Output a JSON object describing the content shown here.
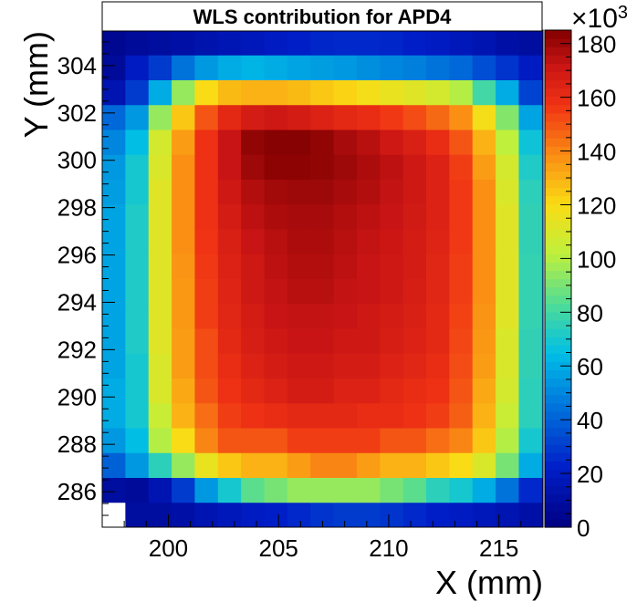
{
  "chart_data": {
    "type": "heatmap",
    "title": "WLS contribution for APD4",
    "xlabel": "X (mm)",
    "ylabel": "Y (mm)",
    "x_range": [
      197,
      217
    ],
    "y_range": [
      284.5,
      305.5
    ],
    "x_ticks": [
      200,
      205,
      210,
      215
    ],
    "y_ticks": [
      286,
      288,
      290,
      292,
      294,
      296,
      298,
      300,
      302,
      304
    ],
    "z_range": [
      0,
      185000
    ],
    "z_ticks": [
      0,
      20,
      40,
      60,
      80,
      100,
      120,
      140,
      160,
      180
    ],
    "z_multiplier_label": "×10",
    "z_multiplier_exponent": "3",
    "colormap": "rainbow (dark blue → cyan → yellow → red → dark red)",
    "grid": false,
    "bins": {
      "nx": 20,
      "ny": 20,
      "x_edges": [
        197,
        218
      ],
      "y_edges": [
        284.5,
        305.5
      ],
      "values": [
        [
          null,
          10,
          10,
          12,
          15,
          18,
          20,
          22,
          25,
          28,
          30,
          30,
          28,
          25,
          22,
          20,
          18,
          15,
          12,
          10
        ],
        [
          10,
          8,
          15,
          30,
          55,
          70,
          85,
          90,
          95,
          95,
          95,
          95,
          90,
          85,
          75,
          70,
          60,
          45,
          25,
          15
        ],
        [
          40,
          55,
          75,
          95,
          115,
          125,
          130,
          130,
          135,
          140,
          140,
          135,
          130,
          130,
          125,
          120,
          110,
          90,
          60,
          40
        ],
        [
          55,
          65,
          100,
          120,
          140,
          150,
          150,
          150,
          155,
          155,
          155,
          155,
          150,
          150,
          145,
          140,
          125,
          100,
          70,
          50
        ],
        [
          60,
          70,
          105,
          130,
          145,
          155,
          158,
          160,
          162,
          162,
          162,
          160,
          160,
          158,
          155,
          148,
          130,
          105,
          75,
          55
        ],
        [
          60,
          70,
          110,
          132,
          150,
          158,
          162,
          165,
          168,
          168,
          165,
          165,
          162,
          160,
          158,
          150,
          132,
          108,
          75,
          55
        ],
        [
          58,
          70,
          110,
          135,
          152,
          160,
          165,
          168,
          170,
          170,
          168,
          168,
          165,
          163,
          160,
          152,
          135,
          110,
          76,
          55
        ],
        [
          58,
          72,
          112,
          135,
          152,
          162,
          167,
          170,
          172,
          172,
          170,
          170,
          167,
          165,
          162,
          153,
          136,
          110,
          76,
          56
        ],
        [
          58,
          72,
          112,
          136,
          155,
          163,
          168,
          172,
          173,
          173,
          172,
          170,
          168,
          166,
          162,
          154,
          137,
          112,
          77,
          56
        ],
        [
          58,
          72,
          112,
          136,
          155,
          164,
          170,
          173,
          175,
          175,
          173,
          172,
          170,
          167,
          163,
          155,
          138,
          112,
          77,
          56
        ],
        [
          58,
          72,
          112,
          137,
          156,
          165,
          170,
          174,
          176,
          176,
          174,
          172,
          170,
          168,
          163,
          155,
          138,
          112,
          77,
          56
        ],
        [
          58,
          72,
          112,
          138,
          157,
          166,
          172,
          175,
          177,
          177,
          175,
          173,
          171,
          168,
          164,
          156,
          138,
          112,
          76,
          55
        ],
        [
          58,
          72,
          112,
          138,
          158,
          168,
          174,
          177,
          178,
          178,
          176,
          174,
          172,
          169,
          165,
          156,
          138,
          112,
          76,
          55
        ],
        [
          56,
          70,
          112,
          138,
          158,
          170,
          176,
          179,
          180,
          180,
          178,
          176,
          173,
          170,
          165,
          156,
          138,
          110,
          75,
          54
        ],
        [
          55,
          70,
          110,
          138,
          158,
          172,
          180,
          183,
          183,
          182,
          180,
          177,
          174,
          170,
          165,
          155,
          135,
          108,
          72,
          52
        ],
        [
          50,
          65,
          108,
          135,
          158,
          172,
          182,
          184,
          184,
          182,
          178,
          175,
          170,
          166,
          160,
          150,
          130,
          102,
          68,
          48
        ],
        [
          42,
          55,
          95,
          125,
          150,
          162,
          168,
          170,
          168,
          165,
          162,
          160,
          156,
          152,
          146,
          138,
          118,
          92,
          58,
          40
        ],
        [
          15,
          30,
          60,
          95,
          120,
          128,
          130,
          130,
          128,
          125,
          122,
          118,
          115,
          112,
          108,
          100,
          80,
          60,
          32,
          20
        ],
        [
          8,
          20,
          30,
          45,
          55,
          60,
          62,
          60,
          58,
          56,
          55,
          52,
          50,
          48,
          45,
          42,
          35,
          28,
          20,
          12
        ],
        [
          5,
          8,
          10,
          12,
          14,
          16,
          18,
          20,
          22,
          24,
          25,
          25,
          24,
          22,
          20,
          18,
          15,
          12,
          10,
          8
        ]
      ]
    }
  }
}
